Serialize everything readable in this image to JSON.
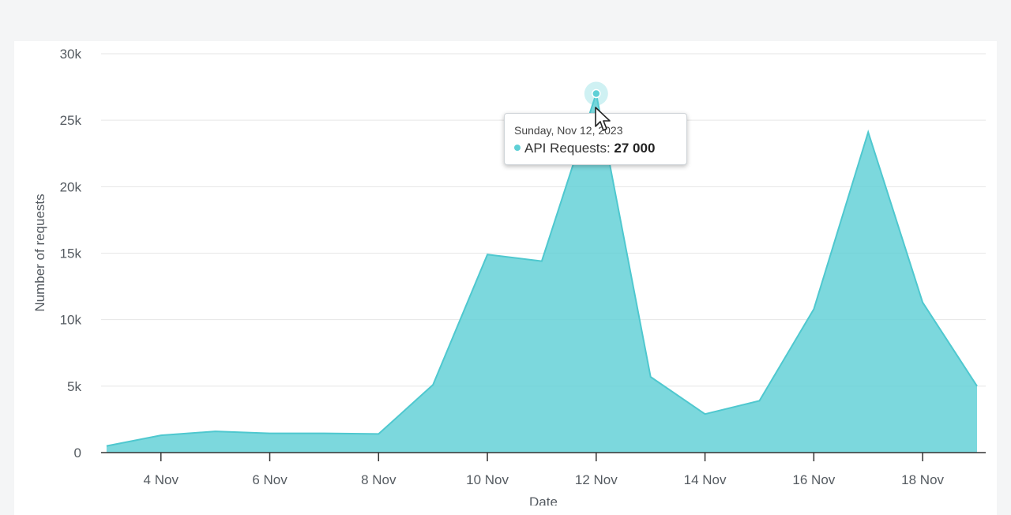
{
  "chart_data": {
    "type": "area",
    "xlabel": "Date",
    "ylabel": "Number of requests",
    "ylim": [
      0,
      30000
    ],
    "y_ticks": [
      "0",
      "5k",
      "10k",
      "15k",
      "20k",
      "25k",
      "30k"
    ],
    "x_ticks": [
      "4 Nov",
      "6 Nov",
      "8 Nov",
      "10 Nov",
      "12 Nov",
      "14 Nov",
      "16 Nov",
      "18 Nov"
    ],
    "x_range": [
      "2023-11-02",
      "2023-11-19"
    ],
    "grid": true,
    "series": [
      {
        "name": "API Requests",
        "color": "#5fd0d6",
        "x": [
          "2023-11-03",
          "2023-11-04",
          "2023-11-05",
          "2023-11-06",
          "2023-11-07",
          "2023-11-08",
          "2023-11-09",
          "2023-11-10",
          "2023-11-11",
          "2023-11-12",
          "2023-11-13",
          "2023-11-14",
          "2023-11-15",
          "2023-11-16",
          "2023-11-17",
          "2023-11-18",
          "2023-11-19"
        ],
        "values": [
          500,
          1300,
          1600,
          1450,
          1450,
          1400,
          5100,
          14900,
          14400,
          27000,
          5700,
          2900,
          3900,
          10800,
          24100,
          11300,
          5000
        ]
      }
    ]
  },
  "tooltip": {
    "date": "Sunday, Nov 12, 2023",
    "series_label": "API Requests:",
    "value": "27 000"
  },
  "colors": {
    "area_fill": "#5fd0d6",
    "area_stroke": "#4fc8cf",
    "grid": "#e6e6e6",
    "axis": "#333333"
  }
}
